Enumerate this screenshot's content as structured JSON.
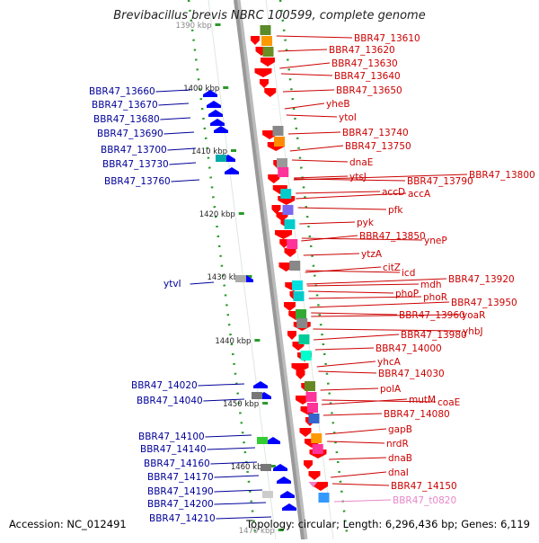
{
  "title": "Brevibacillus brevis NBRC 100599, complete genome",
  "footer": {
    "accession": "Accession: NC_012491",
    "summary": "Topology: circular; Length: 6,296,436 bp; Genes: 6,119"
  },
  "ticks": [
    "1390 kbp",
    "1400 kbp",
    "1410 kbp",
    "1420 kbp",
    "1430 kbp",
    "1440 kbp",
    "1450 kbp",
    "1460 kbp",
    "1470 kbp"
  ],
  "left_labels": [
    "BBR47_13660",
    "BBR47_13670",
    "BBR47_13680",
    "BBR47_13690",
    "BBR47_13700",
    "BBR47_13730",
    "BBR47_13760",
    "ytvI",
    "BBR47_14020",
    "BBR47_14040",
    "BBR47_14100",
    "BBR47_14140",
    "BBR47_14160",
    "BBR47_14170",
    "BBR47_14190",
    "BBR47_14200",
    "BBR47_14210"
  ],
  "right_labels": [
    "BBR47_13610",
    "BBR47_13620",
    "BBR47_13630",
    "BBR47_13640",
    "BBR47_13650",
    "yheB",
    "ytoI",
    "BBR47_13740",
    "BBR47_13750",
    "dnaE",
    "ytsJ",
    "BBR47_13800",
    "BBR47_13790",
    "accD",
    "accA",
    "pfk",
    "pyk",
    "BBR47_13850",
    "yneP",
    "ytzA",
    "citZ",
    "icd",
    "mdh",
    "BBR47_13920",
    "phoP",
    "phoR",
    "BBR47_13950",
    "BBR47_13960",
    "yoaR",
    "BBR47_13980",
    "yhbJ",
    "BBR47_14000",
    "yhcA",
    "BBR47_14030",
    "polA",
    "mutM",
    "coaE",
    "BBR47_14080",
    "gapB",
    "nrdR",
    "dnaB",
    "dnaI",
    "BBR47_14150",
    "BBR47_t0820"
  ],
  "colors": {
    "forward": "#ff0000",
    "reverse": "#0000ff",
    "rna": "#ee82c8",
    "backbone": "#999999",
    "tick_dot": "#2a9a2a",
    "left_label": "#000099",
    "right_label": "#cc0000",
    "rna_label": "#e787c9"
  }
}
